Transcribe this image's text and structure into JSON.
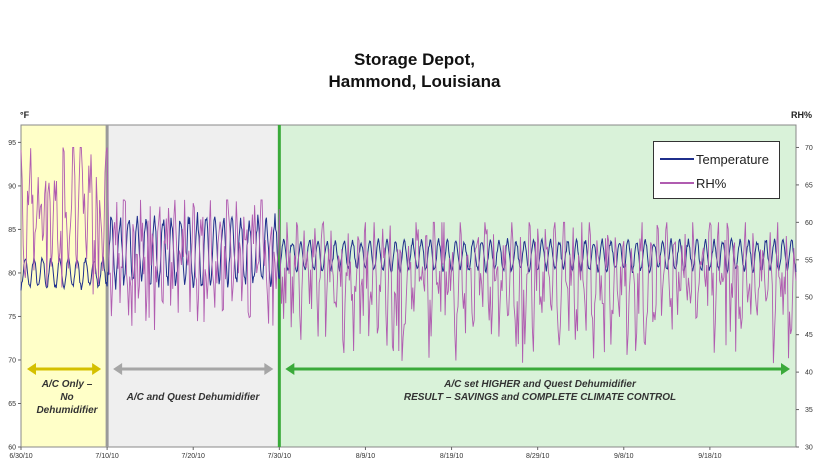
{
  "title_line1": "Storage Depot,",
  "title_line2": "Hammond, Louisiana",
  "left_unit": "°F",
  "right_unit": "RH%",
  "legend": [
    {
      "label": "Temperature",
      "color": "#1f2f8c"
    },
    {
      "label": "RH%",
      "color": "#b05cb0"
    }
  ],
  "regions": [
    {
      "label_lines": [
        "A/C Only –",
        "No",
        "Dehumidifier"
      ],
      "fill": "#ffffc8",
      "arrow_color": "#d4c000",
      "start": "6/30/10",
      "end": "7/10/10"
    },
    {
      "label_lines": [
        "A/C and Quest Dehumidifier"
      ],
      "fill": "#efefef",
      "arrow_color": "#a6a6a6",
      "start": "7/10/10",
      "end": "7/30/10"
    },
    {
      "label_lines": [
        "A/C set HIGHER and Quest Dehumidifier",
        "RESULT – SAVINGS and COMPLETE CLIMATE CONTROL"
      ],
      "fill": "#d9f2d9",
      "arrow_color": "#3aaa3a",
      "start": "7/30/10",
      "end": "9/28/10"
    }
  ],
  "chart_data": {
    "type": "line",
    "title": "Storage Depot, Hammond, Louisiana",
    "x_tick_labels": [
      "6/30/10",
      "7/10/10",
      "7/20/10",
      "7/30/10",
      "8/9/10",
      "8/19/10",
      "8/29/10",
      "9/8/10",
      "9/18/10"
    ],
    "x_range_days_from_first_tick": [
      0,
      90
    ],
    "left_axis": {
      "unit": "°F",
      "range": [
        60,
        97
      ],
      "ticks": [
        60,
        65,
        70,
        75,
        80,
        85,
        90,
        95
      ]
    },
    "right_axis": {
      "unit": "RH%",
      "range": [
        30,
        73
      ],
      "ticks": [
        30,
        35,
        40,
        45,
        50,
        55,
        60,
        65,
        70
      ]
    },
    "series": [
      {
        "name": "Temperature",
        "axis": "left",
        "color": "#1f2f8c",
        "approx_daily_min_max": [
          {
            "from": "6/30/10",
            "to": "7/10/10",
            "min": 78,
            "max": 82
          },
          {
            "from": "7/10/10",
            "to": "7/30/10",
            "min": 78,
            "max": 87
          },
          {
            "from": "7/30/10",
            "to": "9/28/10",
            "min": 80,
            "max": 84
          }
        ]
      },
      {
        "name": "RH%",
        "axis": "right",
        "color": "#b05cb0",
        "approx_range": [
          {
            "from": "6/30/10",
            "to": "7/10/10",
            "min": 50,
            "max": 70
          },
          {
            "from": "7/10/10",
            "to": "7/30/10",
            "min": 45,
            "max": 63
          },
          {
            "from": "7/30/10",
            "to": "9/28/10",
            "min": 41,
            "max": 60
          }
        ]
      }
    ],
    "grid": false,
    "legend_position": "top-right"
  }
}
